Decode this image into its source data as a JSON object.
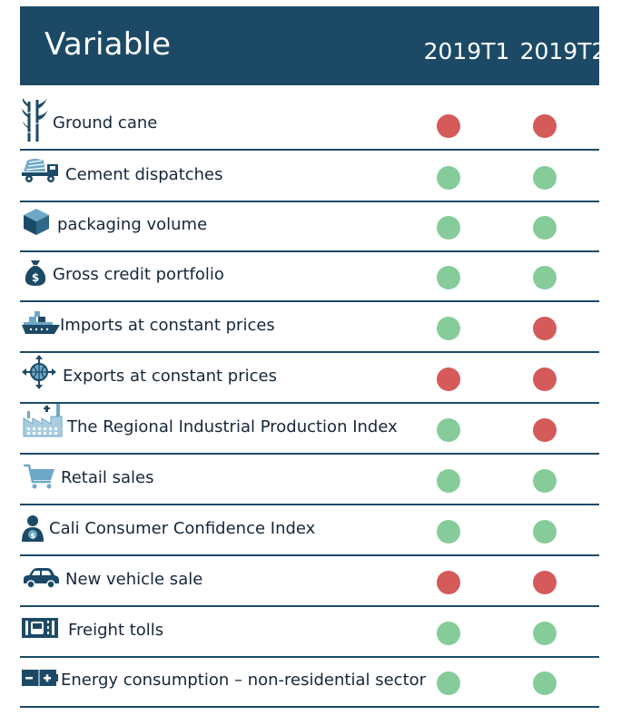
{
  "header": {
    "title": "Variable",
    "periods": [
      "2019T1",
      "2019T2"
    ]
  },
  "colors": {
    "header_bg": "#1c4a66",
    "positive": "#86cc9a",
    "negative": "#d55a5a",
    "separator": "#1c4a66"
  },
  "chart_data": {
    "type": "table",
    "columns": [
      "Variable",
      "2019T1",
      "2019T2"
    ],
    "status_legend": {
      "green": "positive",
      "red": "negative"
    },
    "rows": [
      {
        "label": "Ground cane",
        "icon": "sugar-cane-icon",
        "values": [
          "red",
          "red"
        ]
      },
      {
        "label": "Cement dispatches",
        "icon": "cement-truck-icon",
        "values": [
          "green",
          "green"
        ]
      },
      {
        "label": "packaging volume",
        "icon": "box-icon",
        "values": [
          "green",
          "green"
        ]
      },
      {
        "label": "Gross credit portfolio",
        "icon": "money-bag-icon",
        "values": [
          "green",
          "green"
        ]
      },
      {
        "label": "Imports at constant prices",
        "icon": "cargo-ship-icon",
        "values": [
          "green",
          "red"
        ]
      },
      {
        "label": "Exports at constant prices",
        "icon": "globe-arrows-icon",
        "values": [
          "red",
          "red"
        ]
      },
      {
        "label": "The Regional Industrial Production Index",
        "icon": "factory-icon",
        "values": [
          "green",
          "red"
        ]
      },
      {
        "label": "Retail sales",
        "icon": "shopping-cart-icon",
        "values": [
          "green",
          "green"
        ]
      },
      {
        "label": "Cali Consumer Confidence Index",
        "icon": "consumer-icon",
        "values": [
          "green",
          "green"
        ]
      },
      {
        "label": "New vehicle sale",
        "icon": "car-icon",
        "values": [
          "red",
          "red"
        ]
      },
      {
        "label": "Freight tolls",
        "icon": "toll-booth-icon",
        "values": [
          "green",
          "green"
        ]
      },
      {
        "label": "Energy consumption – non-residential sector",
        "icon": "battery-icon",
        "values": [
          "green",
          "green"
        ]
      }
    ]
  }
}
